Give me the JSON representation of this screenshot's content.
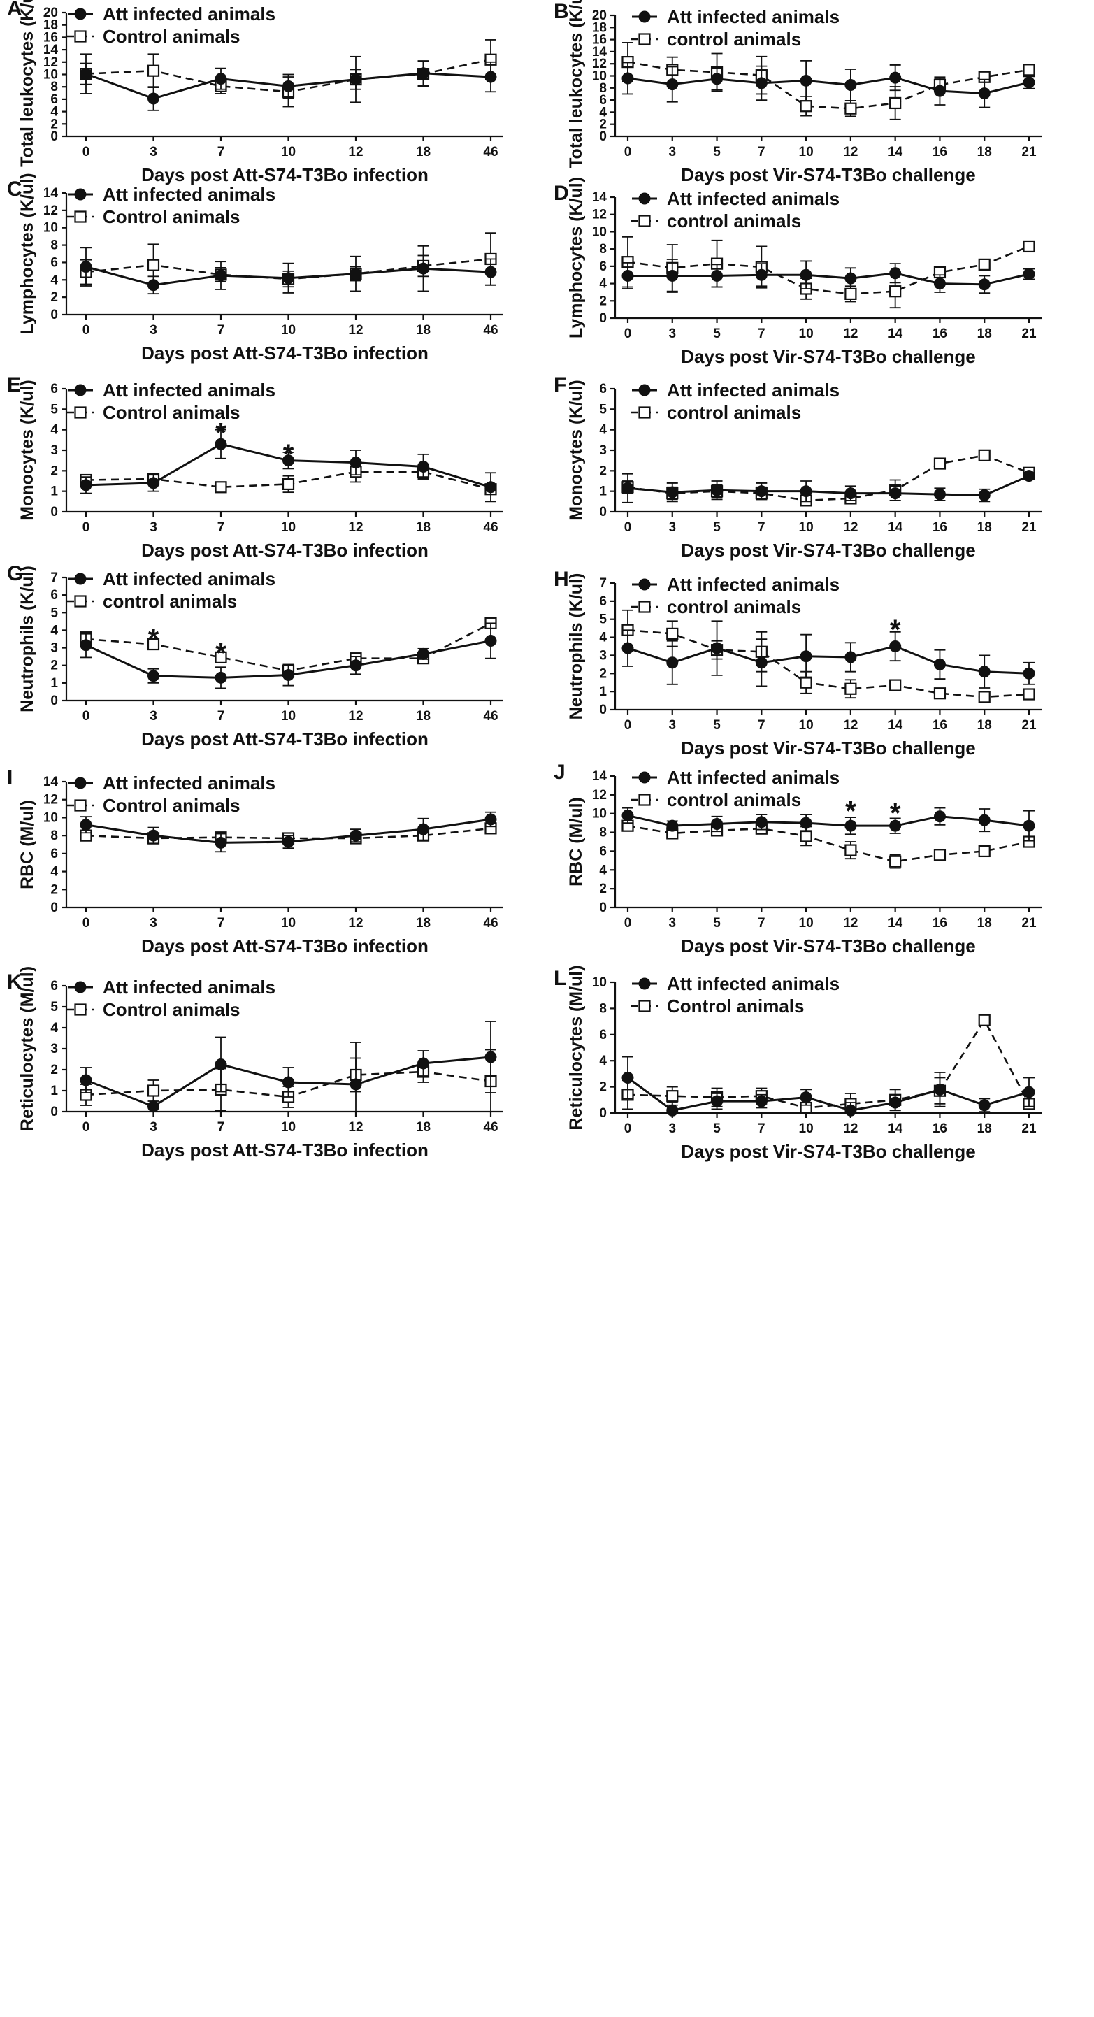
{
  "figure": {
    "panels": [
      "A",
      "B",
      "C",
      "D",
      "E",
      "F",
      "G",
      "H",
      "I",
      "J",
      "K",
      "L"
    ]
  },
  "chart_data": [
    {
      "panel": "A",
      "type": "line",
      "ylabel": "Total leukocytes (K/ul)",
      "xlabel": "Days post Att-S74-T3Bo infection",
      "categories": [
        "0",
        "3",
        "7",
        "10",
        "12",
        "18",
        "46"
      ],
      "ylim": [
        0,
        20
      ],
      "yticks": [
        "0",
        "2",
        "4",
        "6",
        "8",
        "10",
        "12",
        "14",
        "16",
        "18",
        "20"
      ],
      "series": [
        {
          "name": "Att infected animals",
          "style": "att",
          "values": [
            10.1,
            6.1,
            9.3,
            8.1,
            9.2,
            10.2,
            9.6
          ],
          "err": [
            3.2,
            1.9,
            1.7,
            1.9,
            3.7,
            2.0,
            2.4
          ]
        },
        {
          "name": "Control animals",
          "style": "ctl",
          "values": [
            10.1,
            10.6,
            8.1,
            7.2,
            9.2,
            10.1,
            12.4
          ],
          "err": [
            1.7,
            2.7,
            1.2,
            2.4,
            1.6,
            2.0,
            3.2
          ]
        }
      ],
      "annotations": []
    },
    {
      "panel": "B",
      "type": "line",
      "ylabel": "Total leukocytes (K/ul)",
      "xlabel": "Days post Vir-S74-T3Bo challenge",
      "categories": [
        "0",
        "3",
        "5",
        "7",
        "10",
        "12",
        "14",
        "16",
        "18",
        "21"
      ],
      "ylim": [
        0,
        20
      ],
      "yticks": [
        "0",
        "2",
        "4",
        "6",
        "8",
        "10",
        "12",
        "14",
        "16",
        "18",
        "20"
      ],
      "series": [
        {
          "name": "Att infected animals",
          "style": "att",
          "values": [
            9.6,
            8.6,
            9.5,
            8.8,
            9.2,
            8.5,
            9.7,
            7.5,
            7.1,
            8.9
          ],
          "err": [
            2.6,
            2.9,
            1.8,
            2.8,
            3.3,
            2.6,
            2.1,
            2.3,
            2.3,
            1.0
          ]
        },
        {
          "name": "control animals",
          "style": "ctl",
          "values": [
            12.3,
            11.0,
            10.6,
            10.1,
            5.0,
            4.6,
            5.5,
            8.5,
            9.8,
            11.0
          ],
          "err": [
            3.2,
            2.1,
            3.1,
            3.1,
            1.6,
            1.3,
            2.7,
            1.1,
            0.3,
            0.3
          ]
        }
      ],
      "annotations": []
    },
    {
      "panel": "C",
      "type": "line",
      "ylabel": "Lymphocytes (K/ul)",
      "xlabel": "Days post Att-S74-T3Bo infection",
      "categories": [
        "0",
        "3",
        "7",
        "10",
        "12",
        "18",
        "46"
      ],
      "ylim": [
        0,
        14
      ],
      "yticks": [
        "0",
        "2",
        "4",
        "6",
        "8",
        "10",
        "12",
        "14"
      ],
      "series": [
        {
          "name": "Att infected animals",
          "style": "att",
          "values": [
            5.5,
            3.4,
            4.5,
            4.2,
            4.7,
            5.3,
            4.9
          ],
          "err": [
            2.2,
            1.0,
            1.6,
            1.7,
            2.0,
            2.6,
            1.5
          ]
        },
        {
          "name": "Control animals",
          "style": "ctl",
          "values": [
            4.9,
            5.7,
            4.6,
            4.1,
            4.7,
            5.6,
            6.4
          ],
          "err": [
            1.4,
            2.4,
            0.8,
            0.9,
            0.8,
            1.2,
            3.0
          ]
        }
      ],
      "annotations": []
    },
    {
      "panel": "D",
      "type": "line",
      "ylabel": "Lymphocytes (K/ul)",
      "xlabel": "Days post Vir-S74-T3Bo challenge",
      "categories": [
        "0",
        "3",
        "5",
        "7",
        "10",
        "12",
        "14",
        "16",
        "18",
        "21"
      ],
      "ylim": [
        0,
        14
      ],
      "yticks": [
        "0",
        "2",
        "4",
        "6",
        "8",
        "10",
        "12",
        "14"
      ],
      "series": [
        {
          "name": "Att infected animals",
          "style": "att",
          "values": [
            4.9,
            4.9,
            4.9,
            5.0,
            5.0,
            4.6,
            5.2,
            4.0,
            3.9,
            5.1
          ],
          "err": [
            1.5,
            1.9,
            1.3,
            1.3,
            1.6,
            1.2,
            1.1,
            1.0,
            1.0,
            0.6
          ]
        },
        {
          "name": "control animals",
          "style": "ctl",
          "values": [
            6.5,
            5.8,
            6.3,
            5.9,
            3.4,
            2.8,
            3.1,
            5.3,
            6.2,
            8.3
          ],
          "err": [
            2.9,
            2.7,
            2.7,
            2.4,
            1.2,
            0.9,
            1.9,
            0.3,
            0.2,
            0.2
          ]
        }
      ],
      "annotations": []
    },
    {
      "panel": "E",
      "type": "line",
      "ylabel": "Monocytes (K/ul)",
      "xlabel": "Days post Att-S74-T3Bo infection",
      "categories": [
        "0",
        "3",
        "7",
        "10",
        "12",
        "18",
        "46"
      ],
      "ylim": [
        0,
        6
      ],
      "yticks": [
        "0",
        "1",
        "2",
        "3",
        "4",
        "5",
        "6"
      ],
      "series": [
        {
          "name": "Att infected animals",
          "style": "att",
          "values": [
            1.3,
            1.4,
            3.3,
            2.5,
            2.4,
            2.2,
            1.2
          ],
          "err": [
            0.4,
            0.4,
            0.7,
            0.4,
            0.6,
            0.6,
            0.7
          ]
        },
        {
          "name": "Control animals",
          "style": "ctl",
          "values": [
            1.55,
            1.6,
            1.2,
            1.35,
            1.95,
            1.95,
            1.1
          ],
          "err": [
            0.15,
            0.2,
            0.2,
            0.4,
            0.5,
            0.3,
            0.2
          ]
        }
      ],
      "annotations": [
        {
          "text": "*",
          "index": 2,
          "value": 4.15
        },
        {
          "text": "*",
          "index": 3,
          "value": 3.1
        }
      ]
    },
    {
      "panel": "F",
      "type": "line",
      "ylabel": "Monocytes (K/ul)",
      "xlabel": "Days post Vir-S74-T3Bo challenge",
      "categories": [
        "0",
        "3",
        "5",
        "7",
        "10",
        "12",
        "14",
        "16",
        "18",
        "21"
      ],
      "ylim": [
        0,
        6
      ],
      "yticks": [
        "0",
        "1",
        "2",
        "3",
        "4",
        "5",
        "6"
      ],
      "series": [
        {
          "name": "Att infected animals",
          "style": "att",
          "values": [
            1.15,
            0.95,
            1.05,
            1.0,
            1.0,
            0.9,
            0.9,
            0.85,
            0.8,
            1.75
          ],
          "err": [
            0.7,
            0.45,
            0.45,
            0.4,
            0.5,
            0.35,
            0.35,
            0.3,
            0.3,
            0.15
          ]
        },
        {
          "name": "control animals",
          "style": "ctl",
          "values": [
            1.2,
            0.9,
            1.0,
            0.9,
            0.55,
            0.65,
            1.05,
            2.35,
            2.75,
            1.9
          ],
          "err": [
            0.3,
            0.3,
            0.3,
            0.3,
            0.1,
            0.15,
            0.5,
            0.1,
            0.1,
            0.1
          ]
        }
      ],
      "annotations": []
    },
    {
      "panel": "G",
      "type": "line",
      "ylabel": "Neutrophils (K/ul)",
      "xlabel": "Days post Att-S74-T3Bo infection",
      "categories": [
        "0",
        "3",
        "7",
        "10",
        "12",
        "18",
        "46"
      ],
      "ylim": [
        0,
        7
      ],
      "yticks": [
        "0",
        "1",
        "2",
        "3",
        "4",
        "5",
        "6",
        "7"
      ],
      "series": [
        {
          "name": "Att infected animals",
          "style": "att",
          "values": [
            3.15,
            1.4,
            1.3,
            1.45,
            2.0,
            2.65,
            3.4
          ],
          "err": [
            0.7,
            0.4,
            0.6,
            0.6,
            0.5,
            0.3,
            1.0
          ]
        },
        {
          "name": "control animals",
          "style": "ctl",
          "values": [
            3.5,
            3.2,
            2.45,
            1.7,
            2.4,
            2.4,
            4.4
          ],
          "err": [
            0.4,
            0.1,
            0.1,
            0.3,
            0.1,
            0.2,
            0.1
          ]
        }
      ],
      "annotations": [
        {
          "text": "*",
          "index": 1,
          "value": 3.85
        },
        {
          "text": "*",
          "index": 2,
          "value": 3.05
        }
      ]
    },
    {
      "panel": "H",
      "type": "line",
      "ylabel": "Neutrophils (K/ul)",
      "xlabel": "Days post Vir-S74-T3Bo challenge",
      "categories": [
        "0",
        "3",
        "5",
        "7",
        "10",
        "12",
        "14",
        "16",
        "18",
        "21"
      ],
      "ylim": [
        0,
        7
      ],
      "yticks": [
        "0",
        "1",
        "2",
        "3",
        "4",
        "5",
        "6",
        "7"
      ],
      "series": [
        {
          "name": "Att infected animals",
          "style": "att",
          "values": [
            3.4,
            2.6,
            3.4,
            2.6,
            2.95,
            2.9,
            3.5,
            2.5,
            2.1,
            2.0
          ],
          "err": [
            1.0,
            1.2,
            1.5,
            1.3,
            1.2,
            0.8,
            0.8,
            0.8,
            0.9,
            0.6
          ]
        },
        {
          "name": "control animals",
          "style": "ctl",
          "values": [
            4.4,
            4.2,
            3.3,
            3.2,
            1.5,
            1.15,
            1.35,
            0.9,
            0.7,
            0.85
          ],
          "err": [
            1.1,
            0.7,
            0.5,
            1.1,
            0.6,
            0.5,
            0.1,
            0.1,
            0.1,
            0.1
          ]
        }
      ],
      "annotations": [
        {
          "text": "*",
          "index": 6,
          "value": 4.75
        }
      ]
    },
    {
      "panel": "I",
      "type": "line",
      "ylabel": "RBC (M/ul)",
      "xlabel": "Days post Att-S74-T3Bo infection",
      "categories": [
        "0",
        "3",
        "7",
        "10",
        "12",
        "18",
        "46"
      ],
      "ylim": [
        0,
        14
      ],
      "yticks": [
        "0",
        "2",
        "4",
        "6",
        "8",
        "10",
        "12",
        "14"
      ],
      "series": [
        {
          "name": "Att infected animals",
          "style": "att",
          "values": [
            9.2,
            8.0,
            7.2,
            7.3,
            8.0,
            8.7,
            9.8
          ],
          "err": [
            0.9,
            0.9,
            1.0,
            0.7,
            0.7,
            1.2,
            0.8
          ]
        },
        {
          "name": "Control animals",
          "style": "ctl",
          "values": [
            8.0,
            7.7,
            7.8,
            7.7,
            7.7,
            8.0,
            8.8
          ],
          "err": [
            0.5,
            0.6,
            0.4,
            0.4,
            0.3,
            0.5,
            0.5
          ]
        }
      ],
      "annotations": []
    },
    {
      "panel": "J",
      "type": "line",
      "ylabel": "RBC (M/ul)",
      "xlabel": "Days post Vir-S74-T3Bo challenge",
      "categories": [
        "0",
        "3",
        "5",
        "7",
        "10",
        "12",
        "14",
        "16",
        "18",
        "21"
      ],
      "ylim": [
        0,
        14
      ],
      "yticks": [
        "0",
        "2",
        "4",
        "6",
        "8",
        "10",
        "12",
        "14"
      ],
      "series": [
        {
          "name": "Att infected animals",
          "style": "att",
          "values": [
            9.8,
            8.7,
            8.9,
            9.1,
            9.0,
            8.7,
            8.7,
            9.7,
            9.3,
            8.7
          ],
          "err": [
            0.8,
            0.5,
            0.8,
            0.8,
            0.9,
            0.9,
            0.8,
            0.9,
            1.2,
            1.6
          ]
        },
        {
          "name": "control animals",
          "style": "ctl",
          "values": [
            8.7,
            7.9,
            8.2,
            8.4,
            7.6,
            6.1,
            4.9,
            5.6,
            6.0,
            7.0
          ],
          "err": [
            0.4,
            0.4,
            0.5,
            0.4,
            1.0,
            0.9,
            0.7,
            0.2,
            0.2,
            0.2
          ]
        }
      ],
      "annotations": [
        {
          "text": "*",
          "index": 5,
          "value": 10.9
        },
        {
          "text": "*",
          "index": 6,
          "value": 10.7
        }
      ]
    },
    {
      "panel": "K",
      "type": "line",
      "ylabel": "Reticulocytes (M/ul)",
      "xlabel": "Days post Att-S74-T3Bo infection",
      "categories": [
        "0",
        "3",
        "7",
        "10",
        "12",
        "18",
        "46"
      ],
      "ylim": [
        0,
        6
      ],
      "yticks": [
        "0",
        "1",
        "2",
        "3",
        "4",
        "5",
        "6"
      ],
      "series": [
        {
          "name": "Att infected animals",
          "style": "att",
          "values": [
            1.5,
            0.25,
            2.25,
            1.4,
            1.3,
            2.3,
            2.6
          ],
          "err": [
            0.6,
            0.5,
            1.3,
            0.7,
            2.0,
            0.6,
            1.7
          ]
        },
        {
          "name": "Control animals",
          "style": "ctl",
          "values": [
            0.8,
            1.0,
            1.05,
            0.7,
            1.75,
            1.9,
            1.45
          ],
          "err": [
            0.5,
            0.5,
            1.0,
            0.5,
            0.8,
            0.5,
            1.5
          ]
        }
      ],
      "annotations": []
    },
    {
      "panel": "L",
      "type": "line",
      "ylabel": "Reticulocytes (M/ul)",
      "xlabel": "Days post Vir-S74-T3Bo challenge",
      "categories": [
        "0",
        "3",
        "5",
        "7",
        "10",
        "12",
        "14",
        "16",
        "18",
        "21"
      ],
      "ylim": [
        0,
        10
      ],
      "yticks": [
        "0",
        "2",
        "4",
        "6",
        "8",
        "10"
      ],
      "series": [
        {
          "name": "Att infected animals",
          "style": "att",
          "values": [
            2.7,
            0.2,
            0.9,
            0.9,
            1.2,
            0.2,
            0.8,
            1.8,
            0.6,
            1.6
          ],
          "err": [
            1.6,
            0.6,
            0.6,
            0.5,
            0.6,
            0.6,
            0.6,
            1.3,
            0.5,
            1.1
          ]
        },
        {
          "name": "Control animals",
          "style": "ctl",
          "values": [
            1.4,
            1.3,
            1.2,
            1.3,
            0.4,
            0.7,
            1.0,
            1.7,
            7.1,
            0.7
          ],
          "err": [
            1.1,
            0.7,
            0.7,
            0.6,
            0.4,
            0.8,
            0.8,
            1.0,
            0.3,
            0.3
          ]
        }
      ],
      "annotations": []
    }
  ]
}
